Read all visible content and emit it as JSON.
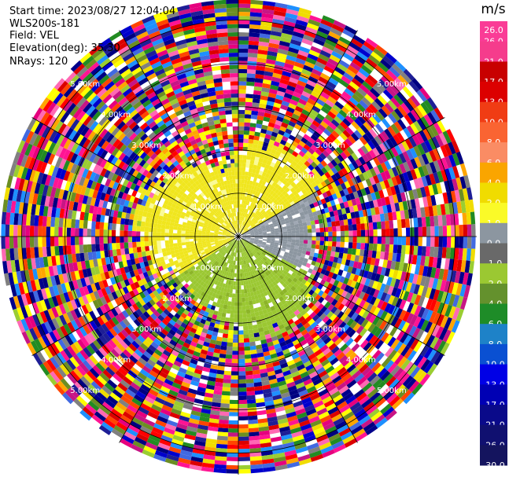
{
  "info": {
    "start_time": "Start time: 2023/08/27 12:04:04",
    "instrument": "WLS200s-181",
    "field": "Field: VEL",
    "elevation": "Elevation(deg): 35.30",
    "nrays": "NRays: 120"
  },
  "colorbar": {
    "unit": "m/s",
    "bins": [
      {
        "label": "-30.0",
        "color": "#14145e"
      },
      {
        "label": "-26.0",
        "color": "#101070"
      },
      {
        "label": "-21.0",
        "color": "#0a0a8a"
      },
      {
        "label": "-17.0",
        "color": "#0000b4"
      },
      {
        "label": "-13.0",
        "color": "#0000e6"
      },
      {
        "label": "-10.0",
        "color": "#0a50d2"
      },
      {
        "label": "-8.0",
        "color": "#1e82c8"
      },
      {
        "label": "-6.0",
        "color": "#1e8c28"
      },
      {
        "label": "-4.0",
        "color": "#64912d"
      },
      {
        "label": "-2.0",
        "color": "#9bc832"
      },
      {
        "label": "-1.0",
        "color": "#696969"
      },
      {
        "label": "0.0",
        "color": "#8c96a0"
      },
      {
        "label": "1.0",
        "color": "#fafa28"
      },
      {
        "label": "2.0",
        "color": "#f0dc00"
      },
      {
        "label": "4.0",
        "color": "#faa500"
      },
      {
        "label": "6.0",
        "color": "#fa8c64"
      },
      {
        "label": "8.0",
        "color": "#fa6432"
      },
      {
        "label": "10.0",
        "color": "#f03c14"
      },
      {
        "label": "13.0",
        "color": "#dc0000"
      },
      {
        "label": "17.0",
        "color": "#c80000"
      },
      {
        "label": "21.0",
        "color": "#f53c8c"
      },
      {
        "label": "26.0",
        "color": "#fa3c96"
      }
    ],
    "top_label": "26.0"
  },
  "chart_data": {
    "type": "heatmap",
    "projection": "polar-ppi",
    "nrays": 120,
    "range_rings_km": [
      1.0,
      2.0,
      3.0,
      4.0,
      5.0
    ],
    "range_ring_labels": [
      "1.00km",
      "1.00km",
      "1.00km",
      "1.00km",
      "2.00km",
      "2.00km",
      "2.00km",
      "2.00km",
      "3.00km",
      "3.00km",
      "3.00km",
      "3.00km",
      "4.00km",
      "4.00km",
      "4.00km",
      "4.00km",
      "5.00km",
      "5.00km",
      "5.00km",
      "5.00km"
    ],
    "max_range_km": 5.5,
    "spokes_deg": [
      0,
      30,
      60,
      90,
      120,
      150
    ],
    "velocity_pattern": {
      "north_west_sector": "2.0",
      "south_sector": "-2.0",
      "east_sector": "0.0",
      "far_range": "noise"
    }
  }
}
